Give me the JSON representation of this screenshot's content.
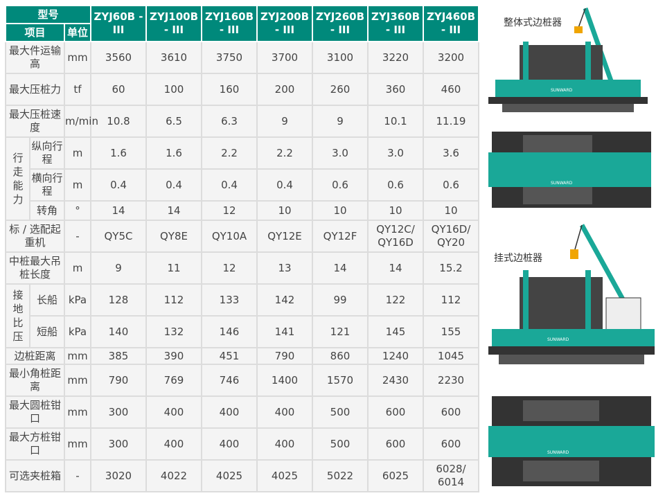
{
  "table": {
    "header": {
      "model_label": "型号",
      "item_label": "项目",
      "unit_label": "单位",
      "models": [
        "ZYJ60B - III",
        "ZYJ100B - III",
        "ZYJ160B - III",
        "ZYJ200B - III",
        "ZYJ260B - III",
        "ZYJ360B - III",
        "ZYJ460B - III"
      ]
    },
    "rows": [
      {
        "label": "最大件运输高",
        "unit": "mm",
        "values": [
          "3560",
          "3610",
          "3750",
          "3700",
          "3100",
          "3220",
          "3200"
        ]
      },
      {
        "label": "最大压桩力",
        "unit": "tf",
        "values": [
          "60",
          "100",
          "160",
          "200",
          "260",
          "360",
          "460"
        ]
      },
      {
        "label": "最大压桩速度",
        "unit": "m/min",
        "values": [
          "10.8",
          "6.5",
          "6.3",
          "9",
          "9",
          "10.1",
          "11.19"
        ]
      }
    ],
    "travel": {
      "group": "行走能力",
      "rows": [
        {
          "label": "纵向行程",
          "unit": "m",
          "values": [
            "1.6",
            "1.6",
            "2.2",
            "2.2",
            "3.0",
            "3.0",
            "3.6"
          ]
        },
        {
          "label": "横向行程",
          "unit": "m",
          "values": [
            "0.4",
            "0.4",
            "0.4",
            "0.4",
            "0.6",
            "0.6",
            "0.6"
          ]
        },
        {
          "label": "转角",
          "unit": "°",
          "values": [
            "14",
            "14",
            "12",
            "10",
            "10",
            "10",
            "10"
          ]
        }
      ]
    },
    "rows2": [
      {
        "label": "标 / 选配起重机",
        "unit": "-",
        "values": [
          "QY5C",
          "QY8E",
          "QY10A",
          "QY12E",
          "QY12F",
          "QY12C/ QY16D",
          "QY16D/ QY20"
        ]
      },
      {
        "label": "中桩最大吊桩长度",
        "unit": "m",
        "values": [
          "9",
          "11",
          "12",
          "13",
          "14",
          "14",
          "15.2"
        ]
      }
    ],
    "ground": {
      "group": "接地比压",
      "rows": [
        {
          "label": "长船",
          "unit": "kPa",
          "values": [
            "128",
            "112",
            "133",
            "142",
            "99",
            "122",
            "112"
          ]
        },
        {
          "label": "短船",
          "unit": "kPa",
          "values": [
            "140",
            "132",
            "146",
            "141",
            "121",
            "145",
            "155"
          ]
        }
      ]
    },
    "rows3": [
      {
        "label": "边桩距离",
        "unit": "mm",
        "values": [
          "385",
          "390",
          "451",
          "790",
          "860",
          "1240",
          "1045"
        ]
      },
      {
        "label": "最小角桩距离",
        "unit": "mm",
        "values": [
          "790",
          "769",
          "746",
          "1400",
          "1570",
          "2430",
          "2230"
        ]
      },
      {
        "label": "最大圆桩钳口",
        "unit": "mm",
        "values": [
          "300",
          "400",
          "400",
          "400",
          "500",
          "600",
          "600"
        ]
      },
      {
        "label": "最大方桩钳口",
        "unit": "mm",
        "values": [
          "300",
          "400",
          "400",
          "400",
          "500",
          "600",
          "600"
        ]
      },
      {
        "label": "可选夹桩箱",
        "unit": "-",
        "values": [
          "3020",
          "4022",
          "4025",
          "4025",
          "5022",
          "6025",
          "6028/ 6014"
        ]
      }
    ]
  },
  "figures": {
    "integrated_label": "整体式边桩器",
    "hanging_label": "挂式边桩器",
    "brand": "SUNWARD",
    "colors": {
      "teal": "#00897b",
      "dark": "#333333",
      "crane": "#1aa898",
      "hook": "#f0a500"
    }
  }
}
